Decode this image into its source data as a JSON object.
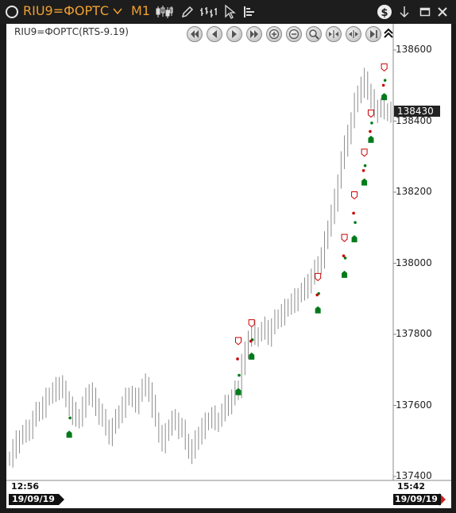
{
  "window": {
    "instrument": "RIU9=ФОРТС",
    "timeframe": "M1"
  },
  "chart": {
    "symbol_label": "RIU9=ФОРТС(RTS-9.19)",
    "current_price": "138430",
    "x_start_time": "12:56",
    "x_end_time": "15:42",
    "start_date": "19/09/19",
    "end_date": "19/09/19"
  },
  "colors": {
    "accent": "#f0a030",
    "bar": "#8c8c8c",
    "buy_marker": "#007a1a",
    "sell_marker": "#cc0000",
    "end_arrow": "#d02020"
  },
  "icons": {
    "window": "circle-icon",
    "chart_type": "candles-icon",
    "draw": "pencil-icon",
    "indicators": "bar-chart-icon",
    "cursor": "cursor-icon",
    "depth": "order-book-icon",
    "dollar": "dollar-icon",
    "download": "arrow-down-icon",
    "restore": "restore-window-icon",
    "close": "close-icon"
  },
  "chart_data": {
    "type": "ohlc",
    "series": [
      {
        "values": [
          137450,
          137480,
          137500,
          137510,
          137520,
          137530,
          137540,
          137560,
          137580,
          137590,
          137600,
          137620,
          137630,
          137640,
          137650,
          137660,
          137640,
          137620,
          137600,
          137580,
          137560,
          137570,
          137600,
          137620,
          137640,
          137620,
          137600,
          137580,
          137560,
          137540,
          137520,
          137540,
          137560,
          137580,
          137600,
          137620,
          137630,
          137620,
          137610,
          137630,
          137650,
          137660,
          137640,
          137600,
          137560,
          137520,
          137500,
          137520,
          137540,
          137560,
          137560,
          137540,
          137530,
          137500,
          137480,
          137470,
          137500,
          137520,
          137540,
          137550,
          137560,
          137570,
          137560,
          137560,
          137580,
          137600,
          137610,
          137620,
          137640,
          137650,
          137720,
          137750,
          137790,
          137810,
          137800,
          137800,
          137810,
          137820,
          137800,
          137820,
          137840,
          137850,
          137860,
          137870,
          137880,
          137890,
          137900,
          137910,
          137920,
          137930,
          137950,
          137960,
          137980,
          138000,
          138020,
          138060,
          138100,
          138140,
          138180,
          138230,
          138290,
          138330,
          138370,
          138400,
          138450,
          138480,
          138500,
          138520,
          138480,
          138460,
          138440,
          138430,
          138440,
          138430,
          138430,
          138430
        ]
      }
    ],
    "ylim": [
      137400,
      138700
    ],
    "yticks": [
      137400,
      137600,
      137800,
      138000,
      138200,
      138400,
      138600
    ],
    "buy_signals": [
      {
        "i": 18,
        "price": 137520
      },
      {
        "i": 69,
        "price": 137640
      },
      {
        "i": 73,
        "price": 137740
      },
      {
        "i": 93,
        "price": 137870
      },
      {
        "i": 101,
        "price": 137970
      },
      {
        "i": 104,
        "price": 138070
      },
      {
        "i": 107,
        "price": 138230
      },
      {
        "i": 109,
        "price": 138350
      },
      {
        "i": 113,
        "price": 138470
      }
    ],
    "sell_signals": [
      {
        "i": 69,
        "price": 137780
      },
      {
        "i": 73,
        "price": 137830
      },
      {
        "i": 93,
        "price": 137960
      },
      {
        "i": 101,
        "price": 138070
      },
      {
        "i": 104,
        "price": 138190
      },
      {
        "i": 107,
        "price": 138310
      },
      {
        "i": 109,
        "price": 138420
      },
      {
        "i": 113,
        "price": 138550
      }
    ]
  }
}
